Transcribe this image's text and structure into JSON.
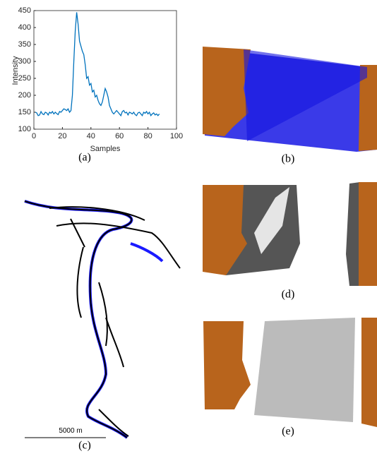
{
  "chart_data": {
    "type": "line",
    "x_label": "Samples",
    "y_label": "Intensity",
    "color": "#0072bd",
    "x": [
      1,
      2,
      3,
      4,
      5,
      6,
      7,
      8,
      9,
      10,
      11,
      12,
      13,
      14,
      15,
      16,
      17,
      18,
      19,
      20,
      21,
      22,
      23,
      24,
      25,
      26,
      27,
      28,
      29,
      30,
      31,
      32,
      33,
      34,
      35,
      36,
      37,
      38,
      39,
      40,
      41,
      42,
      43,
      44,
      45,
      46,
      47,
      48,
      49,
      50,
      51,
      52,
      53,
      54,
      55,
      56,
      57,
      58,
      59,
      60,
      61,
      62,
      63,
      64,
      65,
      66,
      67,
      68,
      69,
      70,
      71,
      72,
      73,
      74,
      75,
      76,
      77,
      78,
      79,
      80,
      81,
      82,
      83,
      84,
      85,
      86,
      87,
      88
    ],
    "values": [
      150,
      148,
      140,
      142,
      152,
      145,
      143,
      150,
      148,
      142,
      150,
      147,
      152,
      145,
      150,
      146,
      143,
      152,
      150,
      155,
      160,
      158,
      155,
      160,
      150,
      155,
      200,
      300,
      390,
      445,
      410,
      360,
      345,
      330,
      320,
      290,
      250,
      255,
      230,
      235,
      210,
      215,
      195,
      200,
      185,
      175,
      170,
      180,
      200,
      220,
      210,
      195,
      170,
      160,
      150,
      145,
      150,
      155,
      150,
      145,
      140,
      152,
      155,
      148,
      150,
      142,
      150,
      148,
      145,
      150,
      143,
      140,
      148,
      150,
      145,
      140,
      150,
      147,
      152,
      145,
      150,
      140,
      145,
      148,
      142,
      145,
      140,
      145
    ],
    "xlim": [
      0,
      100
    ],
    "xticks": [
      0,
      20,
      40,
      60,
      80,
      100
    ],
    "ylim": [
      100,
      450
    ],
    "yticks": [
      100,
      150,
      200,
      250,
      300,
      350,
      400,
      450
    ]
  },
  "captions": [
    "(a)",
    "(b)",
    "(c)",
    "(d)",
    "(e)"
  ],
  "scale_bar": "5000 m"
}
